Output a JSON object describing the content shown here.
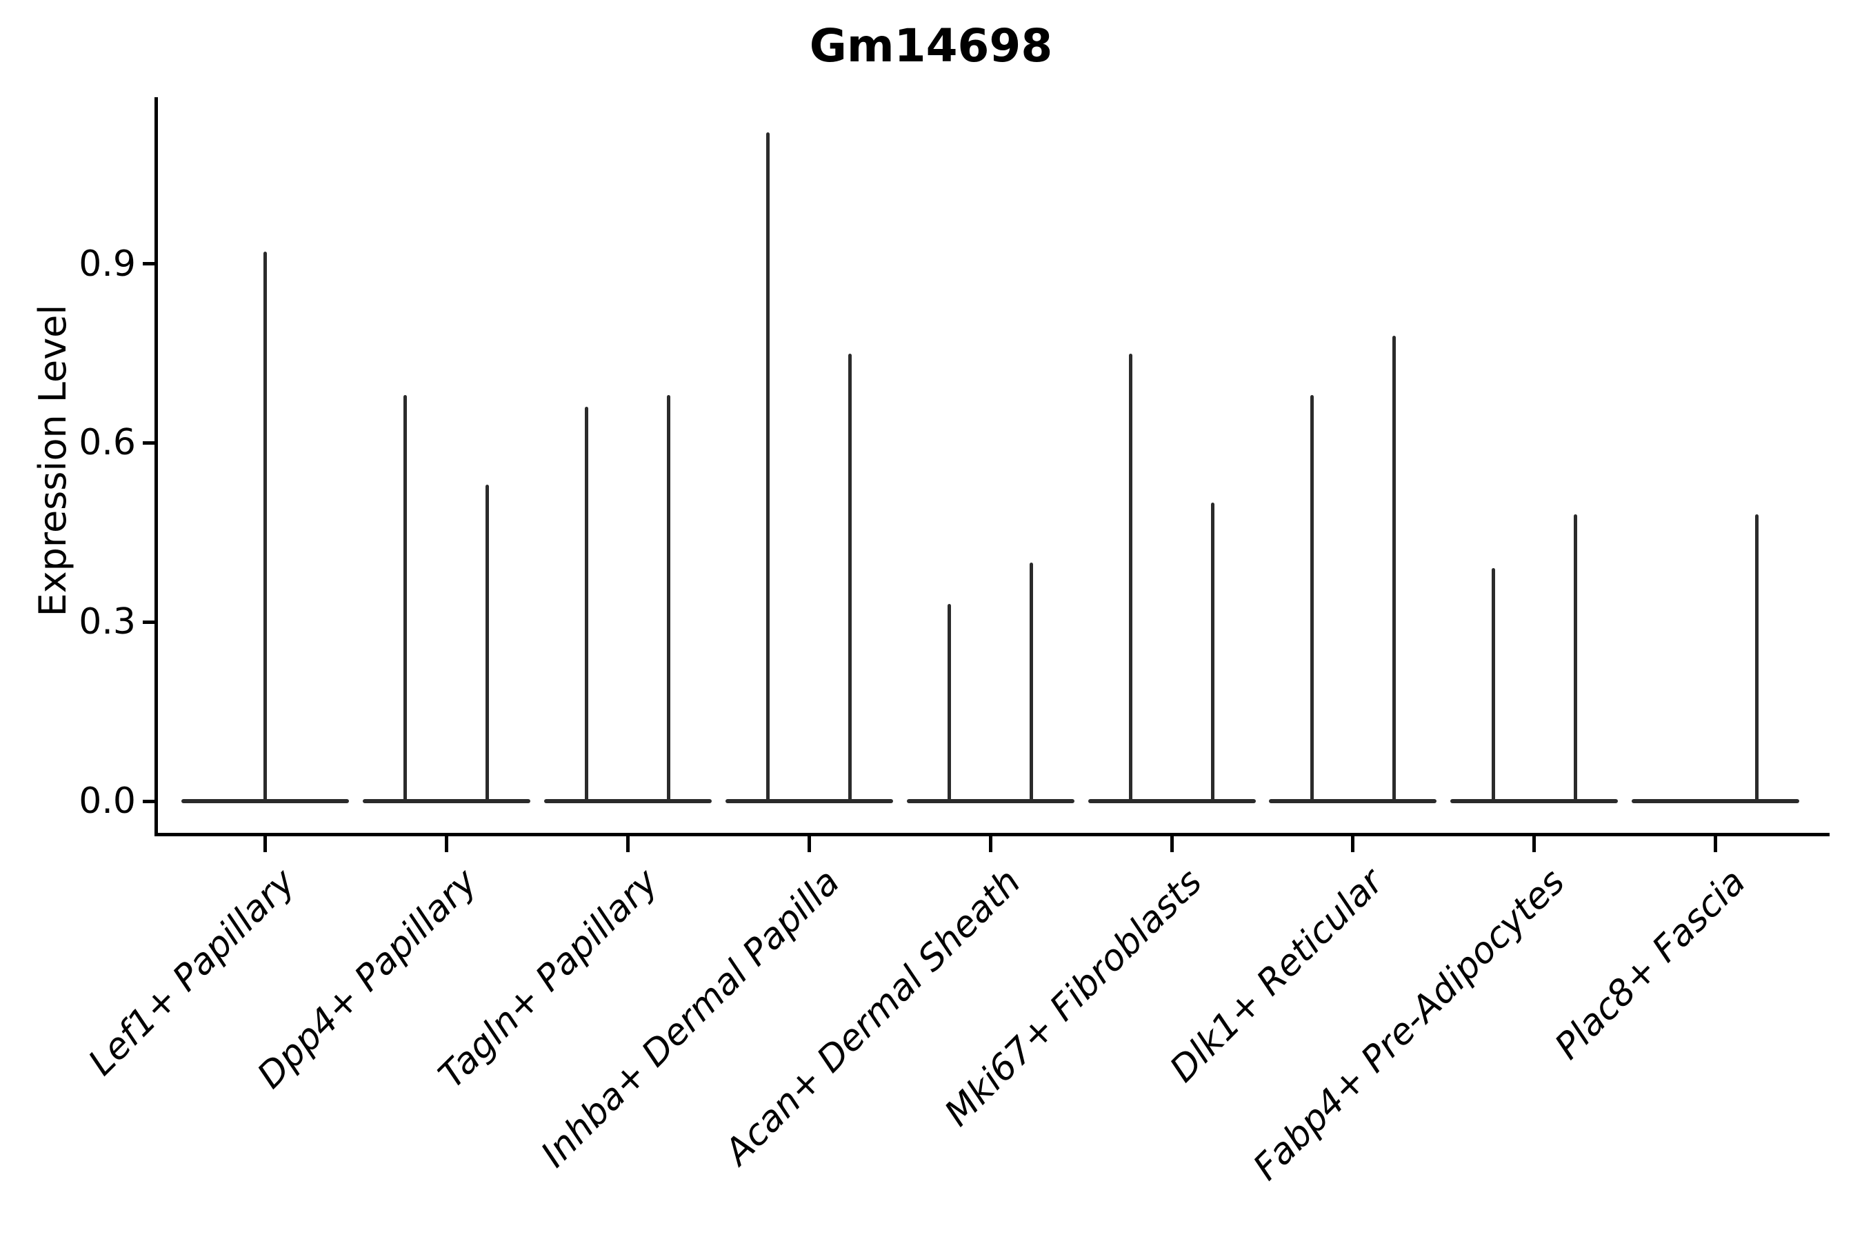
{
  "figure": {
    "title": "Gm14698"
  },
  "chart_data": {
    "type": "violin",
    "title": "Gm14698",
    "xlabel": "",
    "ylabel": "Expression Level",
    "yticks": [
      0.0,
      0.3,
      0.6,
      0.9
    ],
    "ytick_labels": [
      "0.0",
      "0.3",
      "0.6",
      "0.9"
    ],
    "ylim": [
      -0.06,
      1.18
    ],
    "grid": false,
    "legend": "none",
    "x_label_rotation_deg": 45,
    "colors": {
      "violin": "#2b2b2b",
      "axis": "#000000",
      "text": "#000000",
      "background": "#ffffff"
    },
    "categories": [
      "Lef1+ Papillary",
      "Dpp4+ Papillary",
      "Tagln+ Papillary",
      "Inhba+ Dermal Papilla",
      "Acan+ Dermal Sheath",
      "Mki67+ Fibroblasts",
      "Dlk1+ Reticular",
      "Fabp4+ Pre-Adipocytes",
      "Plac8+ Fascia"
    ],
    "violins": [
      {
        "category": "Lef1+ Papillary",
        "baseline_value": 0.0,
        "spikes": [
          {
            "group": "center",
            "max": 0.92
          }
        ]
      },
      {
        "category": "Dpp4+ Papillary",
        "baseline_value": 0.0,
        "spikes": [
          {
            "group": "left",
            "max": 0.68
          },
          {
            "group": "right",
            "max": 0.53
          }
        ]
      },
      {
        "category": "Tagln+ Papillary",
        "baseline_value": 0.0,
        "spikes": [
          {
            "group": "left",
            "max": 0.66
          },
          {
            "group": "right",
            "max": 0.68
          }
        ]
      },
      {
        "category": "Inhba+ Dermal Papilla",
        "baseline_value": 0.0,
        "spikes": [
          {
            "group": "left",
            "max": 1.12
          },
          {
            "group": "right",
            "max": 0.75
          }
        ]
      },
      {
        "category": "Acan+ Dermal Sheath",
        "baseline_value": 0.0,
        "spikes": [
          {
            "group": "left",
            "max": 0.33
          },
          {
            "group": "right",
            "max": 0.4
          }
        ]
      },
      {
        "category": "Mki67+ Fibroblasts",
        "baseline_value": 0.0,
        "spikes": [
          {
            "group": "left",
            "max": 0.75
          },
          {
            "group": "right",
            "max": 0.5
          }
        ]
      },
      {
        "category": "Dlk1+ Reticular",
        "baseline_value": 0.0,
        "spikes": [
          {
            "group": "left",
            "max": 0.68
          },
          {
            "group": "right",
            "max": 0.78
          }
        ]
      },
      {
        "category": "Fabp4+ Pre-Adipocytes",
        "baseline_value": 0.0,
        "spikes": [
          {
            "group": "left",
            "max": 0.39
          },
          {
            "group": "right",
            "max": 0.48
          }
        ]
      },
      {
        "category": "Plac8+ Fascia",
        "baseline_value": 0.0,
        "spikes": [
          {
            "group": "right",
            "max": 0.48
          }
        ]
      }
    ]
  }
}
